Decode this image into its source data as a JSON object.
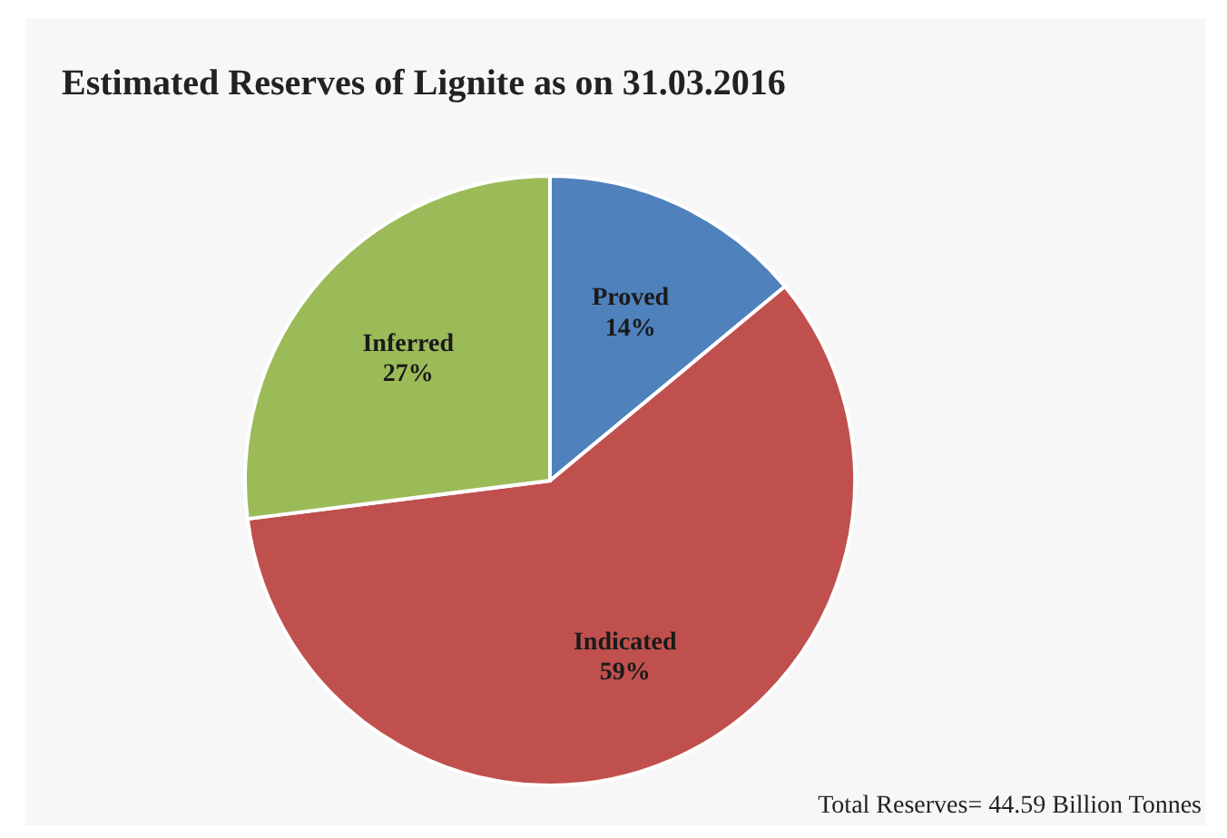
{
  "chart_data": {
    "type": "pie",
    "title": "Estimated Reserves of Lignite as on 31.03.2016",
    "categories": [
      "Proved",
      "Indicated",
      "Inferred"
    ],
    "values": [
      14,
      59,
      27
    ],
    "colors": [
      "#4f81bd",
      "#c0504d",
      "#9bbb59"
    ],
    "value_labels": [
      "14%",
      "59%",
      "27%"
    ],
    "annotations": [
      "Total Reserves= 44.59 Billion Tonnes"
    ]
  }
}
